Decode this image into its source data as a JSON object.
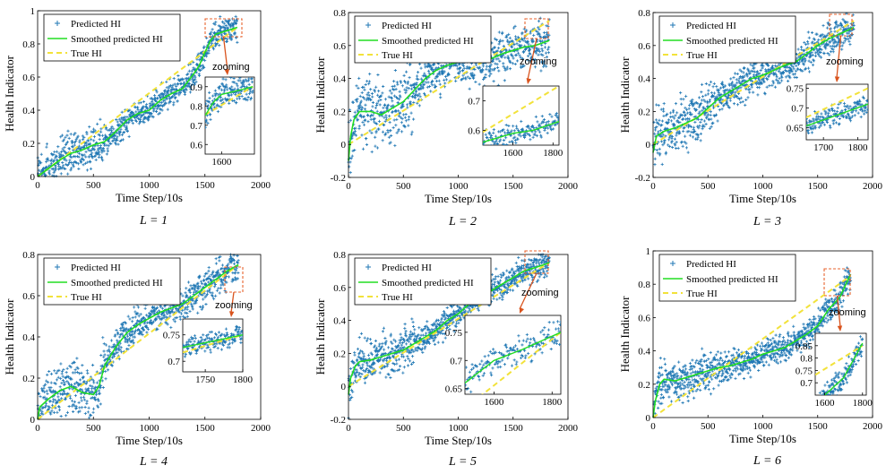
{
  "colors": {
    "predicted": "#1f77b4",
    "smoothed": "#22dd22",
    "true": "#f2e23a",
    "zoom_box": "#e8632e",
    "arrow": "#d9541e"
  },
  "chart_data": [
    {
      "type": "scatter",
      "caption": "L = 1",
      "xlabel": "Time Step/10s",
      "ylabel": "Health Indicator",
      "xlim": [
        0,
        2000
      ],
      "ylim": [
        0,
        1
      ],
      "xticks": [
        0,
        500,
        1000,
        1500,
        2000
      ],
      "yticks": [
        0,
        0.2,
        0.4,
        0.6,
        0.8,
        1
      ],
      "legend": [
        "Predicted HI",
        "Smoothed predicted HI",
        "True HI"
      ],
      "legend_position": "top-left",
      "zoom_label": "zooming",
      "end_x": 1790,
      "true_hi": {
        "x": [
          0,
          1790
        ],
        "y": [
          0,
          0.9
        ]
      },
      "smoothed_hi": {
        "x": [
          0,
          100,
          200,
          300,
          400,
          500,
          600,
          700,
          800,
          900,
          1000,
          1100,
          1200,
          1300,
          1400,
          1450,
          1500,
          1550,
          1600,
          1700,
          1790
        ],
        "y": [
          0.0,
          0.05,
          0.1,
          0.14,
          0.16,
          0.19,
          0.21,
          0.27,
          0.34,
          0.38,
          0.4,
          0.46,
          0.5,
          0.53,
          0.62,
          0.67,
          0.75,
          0.82,
          0.86,
          0.88,
          0.9
        ]
      },
      "scatter_spread": 0.05,
      "inset": {
        "xlim": [
          1500,
          1800
        ],
        "ylim": [
          0.55,
          0.95
        ],
        "xticks": [
          1600
        ],
        "yticks": [
          0.6,
          0.7,
          0.8,
          0.9
        ]
      }
    },
    {
      "type": "scatter",
      "caption": "L = 2",
      "xlabel": "Time Step/10s",
      "ylabel": "Health Indicator",
      "xlim": [
        0,
        2000
      ],
      "ylim": [
        -0.2,
        0.8
      ],
      "xticks": [
        0,
        500,
        1000,
        1500,
        2000
      ],
      "yticks": [
        -0.2,
        0,
        0.2,
        0.4,
        0.6,
        0.8
      ],
      "legend": [
        "Predicted HI",
        "Smoothed predicted HI",
        "True HI"
      ],
      "legend_position": "top-left",
      "zoom_label": "zooming",
      "end_x": 1830,
      "true_hi": {
        "x": [
          0,
          1830
        ],
        "y": [
          0,
          0.75
        ]
      },
      "smoothed_hi": {
        "x": [
          0,
          20,
          50,
          100,
          200,
          300,
          400,
          500,
          600,
          700,
          800,
          900,
          1000,
          1100,
          1200,
          1300,
          1400,
          1500,
          1600,
          1700,
          1830
        ],
        "y": [
          -0.1,
          0.05,
          0.15,
          0.2,
          0.2,
          0.18,
          0.22,
          0.26,
          0.33,
          0.4,
          0.45,
          0.48,
          0.5,
          0.5,
          0.5,
          0.52,
          0.55,
          0.57,
          0.59,
          0.6,
          0.63
        ]
      },
      "scatter_spread": 0.08,
      "inset": {
        "xlim": [
          1450,
          1830
        ],
        "ylim": [
          0.55,
          0.75
        ],
        "xticks": [
          1600,
          1800
        ],
        "yticks": [
          0.6,
          0.7
        ]
      }
    },
    {
      "type": "scatter",
      "caption": "L = 3",
      "xlabel": "Time Step/10s",
      "ylabel": "Health Indicator",
      "xlim": [
        0,
        2000
      ],
      "ylim": [
        -0.2,
        0.8
      ],
      "xticks": [
        0,
        500,
        1000,
        1500,
        2000
      ],
      "yticks": [
        -0.2,
        0,
        0.2,
        0.4,
        0.6,
        0.8
      ],
      "legend": [
        "Predicted HI",
        "Smoothed predicted HI",
        "True HI"
      ],
      "legend_position": "top-left",
      "zoom_label": "zooming",
      "end_x": 1830,
      "true_hi": {
        "x": [
          0,
          1830
        ],
        "y": [
          0,
          0.75
        ]
      },
      "smoothed_hi": {
        "x": [
          0,
          30,
          100,
          200,
          300,
          400,
          500,
          600,
          700,
          800,
          900,
          1000,
          1100,
          1200,
          1300,
          1400,
          1500,
          1600,
          1700,
          1830
        ],
        "y": [
          -0.05,
          0.05,
          0.08,
          0.1,
          0.13,
          0.16,
          0.22,
          0.28,
          0.32,
          0.36,
          0.4,
          0.42,
          0.45,
          0.48,
          0.5,
          0.55,
          0.6,
          0.64,
          0.67,
          0.71
        ]
      },
      "scatter_spread": 0.06,
      "inset": {
        "xlim": [
          1650,
          1830
        ],
        "ylim": [
          0.62,
          0.76
        ],
        "xticks": [
          1700,
          1800
        ],
        "yticks": [
          0.65,
          0.7,
          0.75
        ]
      }
    },
    {
      "type": "scatter",
      "caption": "L = 4",
      "xlabel": "Time Step/10s",
      "ylabel": "Health Indicator",
      "xlim": [
        0,
        2000
      ],
      "ylim": [
        0,
        0.8
      ],
      "xticks": [
        0,
        500,
        1000,
        1500,
        2000
      ],
      "yticks": [
        0,
        0.2,
        0.4,
        0.6,
        0.8
      ],
      "legend": [
        "Predicted HI",
        "Smoothed predicted HI",
        "True HI"
      ],
      "legend_position": "top-left",
      "zoom_label": "zooming",
      "end_x": 1800,
      "true_hi": {
        "x": [
          0,
          1800
        ],
        "y": [
          0,
          0.75
        ]
      },
      "smoothed_hi": {
        "x": [
          0,
          20,
          100,
          200,
          300,
          400,
          500,
          550,
          600,
          700,
          800,
          900,
          1000,
          1100,
          1200,
          1300,
          1400,
          1500,
          1600,
          1700,
          1800
        ],
        "y": [
          0.0,
          0.06,
          0.1,
          0.14,
          0.16,
          0.13,
          0.12,
          0.16,
          0.26,
          0.35,
          0.42,
          0.46,
          0.49,
          0.52,
          0.54,
          0.56,
          0.6,
          0.64,
          0.68,
          0.72,
          0.75
        ]
      },
      "scatter_spread": 0.05,
      "inset": {
        "xlim": [
          1720,
          1800
        ],
        "ylim": [
          0.68,
          0.78
        ],
        "xticks": [
          1750,
          1800
        ],
        "yticks": [
          0.7,
          0.75
        ]
      }
    },
    {
      "type": "scatter",
      "caption": "L = 5",
      "xlabel": "Time Step/10s",
      "ylabel": "Health Indicator",
      "xlim": [
        0,
        2000
      ],
      "ylim": [
        -0.2,
        0.8
      ],
      "xticks": [
        0,
        500,
        1000,
        1500,
        2000
      ],
      "yticks": [
        -0.2,
        0,
        0.2,
        0.4,
        0.6,
        0.8
      ],
      "legend": [
        "Predicted HI",
        "Smoothed predicted HI",
        "True HI"
      ],
      "legend_position": "top-left",
      "zoom_label": "zooming",
      "end_x": 1830,
      "true_hi": {
        "x": [
          0,
          1830
        ],
        "y": [
          0,
          0.75
        ]
      },
      "smoothed_hi": {
        "x": [
          0,
          20,
          60,
          100,
          200,
          300,
          400,
          500,
          600,
          700,
          800,
          900,
          1000,
          1100,
          1200,
          1300,
          1400,
          1500,
          1600,
          1700,
          1830
        ],
        "y": [
          -0.05,
          0.05,
          0.12,
          0.15,
          0.16,
          0.18,
          0.2,
          0.22,
          0.26,
          0.3,
          0.34,
          0.4,
          0.44,
          0.5,
          0.54,
          0.58,
          0.62,
          0.66,
          0.7,
          0.72,
          0.75
        ]
      },
      "scatter_spread": 0.05,
      "inset": {
        "xlim": [
          1500,
          1830
        ],
        "ylim": [
          0.64,
          0.78
        ],
        "xticks": [
          1600,
          1800
        ],
        "yticks": [
          0.65,
          0.7,
          0.75
        ]
      }
    },
    {
      "type": "scatter",
      "caption": "L = 6",
      "xlabel": "Time Step/10s",
      "ylabel": "Health Indicator",
      "xlim": [
        0,
        2000
      ],
      "ylim": [
        0,
        1
      ],
      "xticks": [
        0,
        500,
        1000,
        1500,
        2000
      ],
      "yticks": [
        0,
        0.2,
        0.4,
        0.6,
        0.8,
        1
      ],
      "legend": [
        "Predicted HI",
        "Smoothed predicted HI",
        "True HI"
      ],
      "legend_position": "top-left",
      "zoom_label": "zooming",
      "end_x": 1800,
      "true_hi": {
        "x": [
          0,
          1800
        ],
        "y": [
          0,
          0.85
        ]
      },
      "smoothed_hi": {
        "x": [
          0,
          20,
          60,
          100,
          200,
          300,
          400,
          500,
          600,
          700,
          800,
          900,
          1000,
          1100,
          1200,
          1300,
          1400,
          1500,
          1600,
          1700,
          1800
        ],
        "y": [
          0.0,
          0.1,
          0.2,
          0.23,
          0.22,
          0.24,
          0.26,
          0.28,
          0.3,
          0.31,
          0.33,
          0.35,
          0.38,
          0.4,
          0.42,
          0.46,
          0.5,
          0.55,
          0.65,
          0.72,
          0.86
        ]
      },
      "scatter_spread": 0.05,
      "inset": {
        "xlim": [
          1550,
          1820
        ],
        "ylim": [
          0.65,
          0.9
        ],
        "xticks": [
          1600,
          1800
        ],
        "yticks": [
          0.7,
          0.75,
          0.8,
          0.85
        ]
      }
    }
  ]
}
